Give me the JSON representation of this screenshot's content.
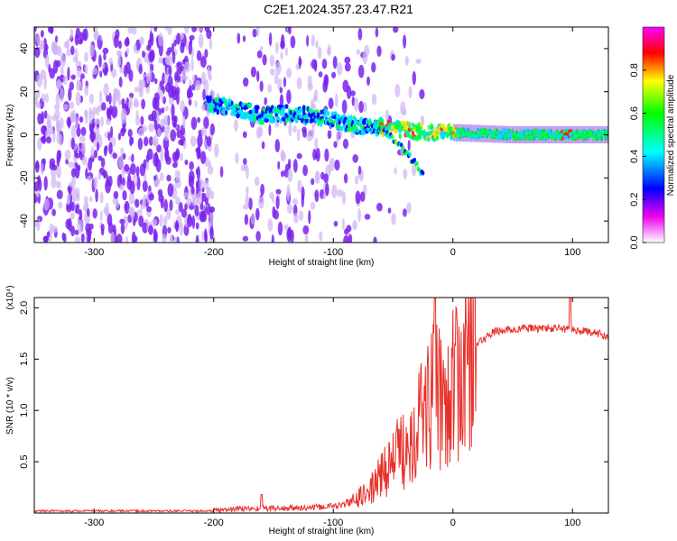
{
  "title": "C2E1.2024.357.23.47.R21",
  "colors": {
    "snr_line": "#e8302a",
    "axis": "#000000",
    "spectrogram_noise": "#7a22ee",
    "colorbar": [
      "#ff00ff",
      "#ff0000",
      "#ffff00",
      "#00ff00",
      "#00ffff",
      "#0000ff",
      "#ee00ee",
      "#ffffff"
    ]
  },
  "chart_data": [
    {
      "type": "heatmap",
      "xlabel": "Height of straight line (km)",
      "ylabel": "Frequency (Hz)",
      "xlim": [
        -350,
        130
      ],
      "ylim": [
        -50,
        50
      ],
      "xticks": [
        -300,
        -200,
        -100,
        0,
        100
      ],
      "yticks": [
        -40,
        -20,
        0,
        20,
        40
      ],
      "colorbar": {
        "label": "Normalized spectral amplitude",
        "range": [
          0,
          1
        ],
        "ticks": [
          "0.0",
          "0.2",
          "0.4",
          "0.6",
          "0.8"
        ]
      },
      "signal_track": [
        {
          "x": -200,
          "y": 14
        },
        {
          "x": -180,
          "y": 12
        },
        {
          "x": -160,
          "y": 9
        },
        {
          "x": -140,
          "y": 10
        },
        {
          "x": -120,
          "y": 9
        },
        {
          "x": -100,
          "y": 7
        },
        {
          "x": -80,
          "y": 4
        },
        {
          "x": -60,
          "y": 3
        },
        {
          "x": -40,
          "y": 2
        },
        {
          "x": -20,
          "y": 1
        },
        {
          "x": 0,
          "y": 1
        },
        {
          "x": 50,
          "y": 0
        },
        {
          "x": 100,
          "y": 0
        },
        {
          "x": 130,
          "y": 0
        }
      ],
      "drift_branch": [
        {
          "x": -60,
          "y": 6
        },
        {
          "x": -50,
          "y": -2
        },
        {
          "x": -40,
          "y": -8
        },
        {
          "x": -30,
          "y": -14
        },
        {
          "x": -25,
          "y": -19
        }
      ]
    },
    {
      "type": "line",
      "xlabel": "Height of straight line (km)",
      "ylabel": "SNR (10 * v/v)",
      "multiplier": "(x10⁴)",
      "xlim": [
        -350,
        130
      ],
      "ylim": [
        0,
        2.1
      ],
      "xticks": [
        -300,
        -200,
        -100,
        0,
        100
      ],
      "yticks": [
        0.5,
        1.0,
        1.5,
        2.0
      ],
      "ytick_labels": [
        "0.5",
        "1.0",
        "1.5",
        "2.0"
      ],
      "envelope": [
        {
          "x": -350,
          "y": 0.02
        },
        {
          "x": -200,
          "y": 0.02
        },
        {
          "x": -180,
          "y": 0.04
        },
        {
          "x": -120,
          "y": 0.05
        },
        {
          "x": -90,
          "y": 0.08
        },
        {
          "x": -70,
          "y": 0.2
        },
        {
          "x": -55,
          "y": 0.45
        },
        {
          "x": -40,
          "y": 0.65
        },
        {
          "x": -30,
          "y": 0.9
        },
        {
          "x": -20,
          "y": 1.1
        },
        {
          "x": -10,
          "y": 1.15
        },
        {
          "x": 0,
          "y": 1.2
        },
        {
          "x": 10,
          "y": 1.45
        },
        {
          "x": 20,
          "y": 1.65
        },
        {
          "x": 35,
          "y": 1.77
        },
        {
          "x": 60,
          "y": 1.8
        },
        {
          "x": 90,
          "y": 1.8
        },
        {
          "x": 110,
          "y": 1.77
        },
        {
          "x": 130,
          "y": 1.73
        }
      ],
      "peaks": [
        {
          "x": -15,
          "y": 2.1
        },
        {
          "x": 98,
          "y": 2.1
        },
        {
          "x": -160,
          "y": 0.18
        }
      ]
    }
  ]
}
